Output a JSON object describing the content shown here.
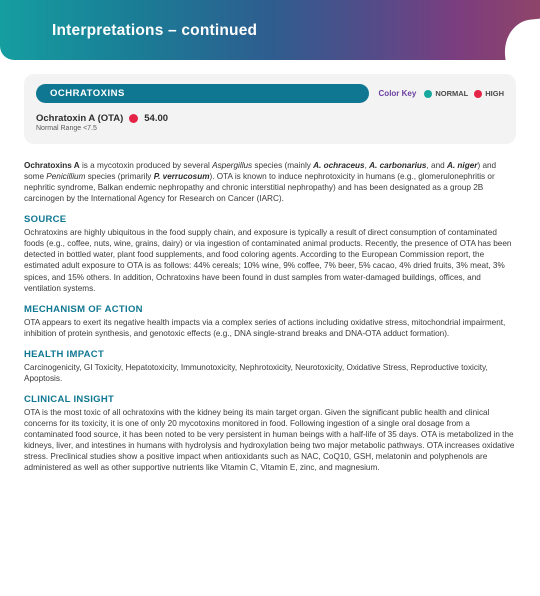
{
  "header": {
    "title": "Interpretations – continued"
  },
  "colors": {
    "band_gradient_stops": [
      "#159ea0",
      "#1a7d96",
      "#2e5d8f",
      "#564b89",
      "#7c3d7e",
      "#8f4569"
    ],
    "pill_bg": "#0f7792",
    "heading": "#0f7792",
    "card_bg": "#f3f3f3",
    "key_label": "#6b3fa0",
    "normal_dot": "#17a89d",
    "high_dot": "#e52346",
    "text": "#3a3a3a"
  },
  "card": {
    "pill_label": "OCHRATOXINS",
    "color_key_label": "Color Key",
    "legend": [
      {
        "label": "NORMAL",
        "color": "#17a89d"
      },
      {
        "label": "HIGH",
        "color": "#e52346"
      }
    ],
    "result": {
      "name": "Ochratoxin A (OTA)",
      "value": "54.00",
      "status_color": "#e52346",
      "range_label": "Normal Range <7.5"
    }
  },
  "intro": {
    "pre": "Ochratoxins A",
    "mid1": " is a mycotoxin produced by several ",
    "ital1": "Aspergillus",
    "mid1b": " species (mainly ",
    "b1": "A. ochraceus",
    "c1": ", ",
    "b2": "A. carbonarius",
    "c2": ", and ",
    "b3": "A. niger",
    "mid2": ") and some ",
    "ital2": "Penicillium",
    "mid3": " species (primarily ",
    "b4": "P. verrucosum",
    "tail": "). OTA is known to induce nephrotoxicity in humans (e.g., glomerulonephritis or nephritic syndrome, Balkan endemic nephropathy and chronic interstitial nephropathy) and has been designated as a group 2B carcinogen by the International Agency for Research on Cancer (IARC)."
  },
  "sections": {
    "source": {
      "heading": "SOURCE",
      "text": "Ochratoxins are highly ubiquitous in the food supply chain, and exposure is typically a result of direct consumption of contaminated foods (e.g., coffee, nuts, wine, grains, dairy) or via ingestion of contaminated animal products. Recently, the presence of OTA has been detected in bottled water, plant food supplements, and food coloring agents. According to the European Commission report, the estimated adult exposure to OTA is as follows: 44% cereals; 10% wine, 9% coffee, 7% beer, 5% cacao, 4% dried fruits, 3% meat, 3% spices, and 15% others. In addition, Ochratoxins have been found in dust samples from water-damaged buildings, offices, and ventilation systems."
    },
    "mechanism": {
      "heading": "MECHANISM OF ACTION",
      "text": "OTA appears to exert its negative health impacts via a complex series of actions including oxidative stress, mitochondrial impairment, inhibition of protein synthesis, and genotoxic effects (e.g., DNA single-strand breaks and DNA-OTA adduct formation)."
    },
    "health": {
      "heading": "HEALTH IMPACT",
      "text": "Carcinogenicity, GI Toxicity, Hepatotoxicity, Immunotoxicity, Nephrotoxicity, Neurotoxicity, Oxidative Stress, Reproductive toxicity, Apoptosis."
    },
    "clinical": {
      "heading": "CLINICAL INSIGHT",
      "text": "OTA is the most toxic of all ochratoxins with the kidney being its main target organ. Given the significant public health and clinical concerns for its toxicity, it is one of only 20 mycotoxins monitored in food. Following ingestion of a single oral dosage from a contaminated food source, it has been noted to be very persistent in human beings with a half-life of 35 days. OTA is metabolized in the kidneys, liver, and intestines in humans with hydrolysis and hydroxylation being two major metabolic pathways. OTA increases oxidative stress. Preclinical studies show a positive impact when antioxidants such as NAC, CoQ10, GSH, melatonin and polyphenols are administered as well as other supportive nutrients like Vitamin C, Vitamin E, zinc, and magnesium."
    }
  }
}
